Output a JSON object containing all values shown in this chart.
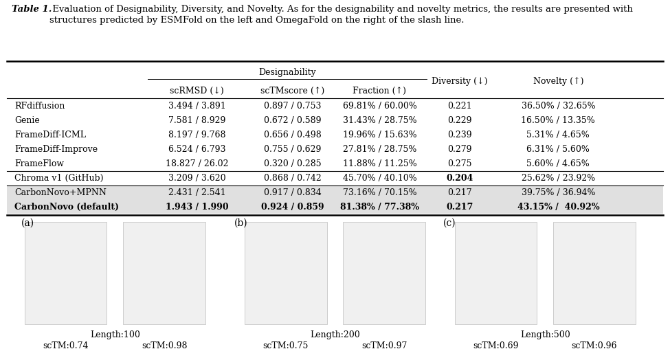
{
  "title_bold": "Table 1.",
  "title_normal": " Evaluation of Designability, Diversity, and Novelty. As for the designability and novelty metrics, the results are presented with\nstructures predicted by ESMFold on the left and OmegaFold on the right of the slash line.",
  "rows": [
    {
      "name": "RFdiffusion",
      "scrmsd": "3.494 / 3.891",
      "sctm": "0.897 / 0.753",
      "frac": "69.81% / 60.00%",
      "div": "0.221",
      "nov": "36.50% / 32.65%",
      "bold": false,
      "bold_div": false,
      "shaded": false
    },
    {
      "name": "Genie",
      "scrmsd": "7.581 / 8.929",
      "sctm": "0.672 / 0.589",
      "frac": "31.43% / 28.75%",
      "div": "0.229",
      "nov": "16.50% / 13.35%",
      "bold": false,
      "bold_div": false,
      "shaded": false
    },
    {
      "name": "FrameDiff-ICML",
      "scrmsd": "8.197 / 9.768",
      "sctm": "0.656 / 0.498",
      "frac": "19.96% / 15.63%",
      "div": "0.239",
      "nov": "5.31% / 4.65%",
      "bold": false,
      "bold_div": false,
      "shaded": false
    },
    {
      "name": "FrameDiff-Improve",
      "scrmsd": "6.524 / 6.793",
      "sctm": "0.755 / 0.629",
      "frac": "27.81% / 28.75%",
      "div": "0.279",
      "nov": "6.31% / 5.60%",
      "bold": false,
      "bold_div": false,
      "shaded": false
    },
    {
      "name": "FrameFlow",
      "scrmsd": "18.827 / 26.02",
      "sctm": "0.320 / 0.285",
      "frac": "11.88% / 11.25%",
      "div": "0.275",
      "nov": "5.60% / 4.65%",
      "bold": false,
      "bold_div": false,
      "shaded": false
    },
    {
      "name": "Chroma v1 (GitHub)",
      "scrmsd": "3.209 / 3.620",
      "sctm": "0.868 / 0.742",
      "frac": "45.70% / 40.10%",
      "div": "0.204",
      "nov": "25.62% / 23.92%",
      "bold": false,
      "bold_div": true,
      "shaded": false
    },
    {
      "name": "CarbonNovo+MPNN",
      "scrmsd": "2.431 / 2.541",
      "sctm": "0.917 / 0.834",
      "frac": "73.16% / 70.15%",
      "div": "0.217",
      "nov": "39.75% / 36.94%",
      "bold": false,
      "bold_div": false,
      "shaded": true
    },
    {
      "name": "CarbonNovo (default)",
      "scrmsd": "1.943 / 1.990",
      "sctm": "0.924 / 0.859",
      "frac": "81.38% / 77.38%",
      "div": "0.217",
      "nov": "43.15% /  40.92%",
      "bold": true,
      "bold_div": false,
      "shaded": true
    }
  ],
  "protein_groups": [
    {
      "label": "(a)",
      "length": "Length:100",
      "sctm_left": "scTM:0.74",
      "sctm_right": "scTM:0.98"
    },
    {
      "label": "(b)",
      "length": "Length:200",
      "sctm_left": "scTM:0.75",
      "sctm_right": "scTM:0.97"
    },
    {
      "label": "(c)",
      "length": "Length:500",
      "sctm_left": "scTM:0.69",
      "sctm_right": "scTM:0.96"
    }
  ],
  "bg_color": "#ffffff",
  "shaded_color": "#e0e0e0",
  "fs": 9.0,
  "fs_title": 9.5
}
